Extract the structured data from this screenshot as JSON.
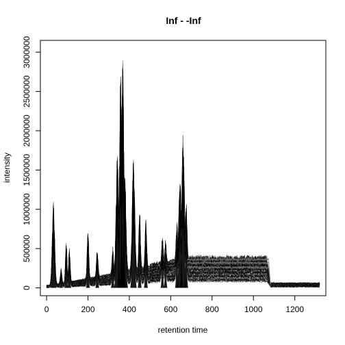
{
  "chart_data": {
    "type": "line",
    "title": "Inf - -Inf",
    "xlabel": "retention time",
    "ylabel": "intensity",
    "xlim": [
      -30,
      1350
    ],
    "ylim": [
      -100000,
      3150000
    ],
    "xticks": [
      0,
      200,
      400,
      600,
      800,
      1000,
      1200
    ],
    "xtick_labels": [
      "0",
      "200",
      "400",
      "600",
      "800",
      "1000",
      "1200"
    ],
    "yticks": [
      0,
      500000,
      1000000,
      1500000,
      2000000,
      2500000,
      3000000
    ],
    "ytick_labels": [
      "0",
      "500000",
      "1000000",
      "1500000",
      "2000000",
      "2500000",
      "3000000"
    ],
    "grid": false,
    "legend": "none",
    "line_color": "#000000",
    "x_start": 0,
    "x_end": 1320,
    "plateau": {
      "x_start": 680,
      "x_end": 1065,
      "upper": 360000,
      "mid": 260000,
      "lower": 130000
    },
    "peaks": [
      {
        "x": 33,
        "y": 1100000
      },
      {
        "x": 70,
        "y": 220000
      },
      {
        "x": 95,
        "y": 580000
      },
      {
        "x": 110,
        "y": 490000
      },
      {
        "x": 200,
        "y": 700000
      },
      {
        "x": 245,
        "y": 430000
      },
      {
        "x": 320,
        "y": 400000
      },
      {
        "x": 342,
        "y": 1650000
      },
      {
        "x": 358,
        "y": 2700000
      },
      {
        "x": 368,
        "y": 2900000
      },
      {
        "x": 378,
        "y": 1400000
      },
      {
        "x": 420,
        "y": 1640000
      },
      {
        "x": 450,
        "y": 900000
      },
      {
        "x": 480,
        "y": 730000
      },
      {
        "x": 560,
        "y": 420000
      },
      {
        "x": 575,
        "y": 350000
      },
      {
        "x": 630,
        "y": 600000
      },
      {
        "x": 645,
        "y": 1200000
      },
      {
        "x": 660,
        "y": 1810000
      },
      {
        "x": 675,
        "y": 900000
      }
    ]
  }
}
